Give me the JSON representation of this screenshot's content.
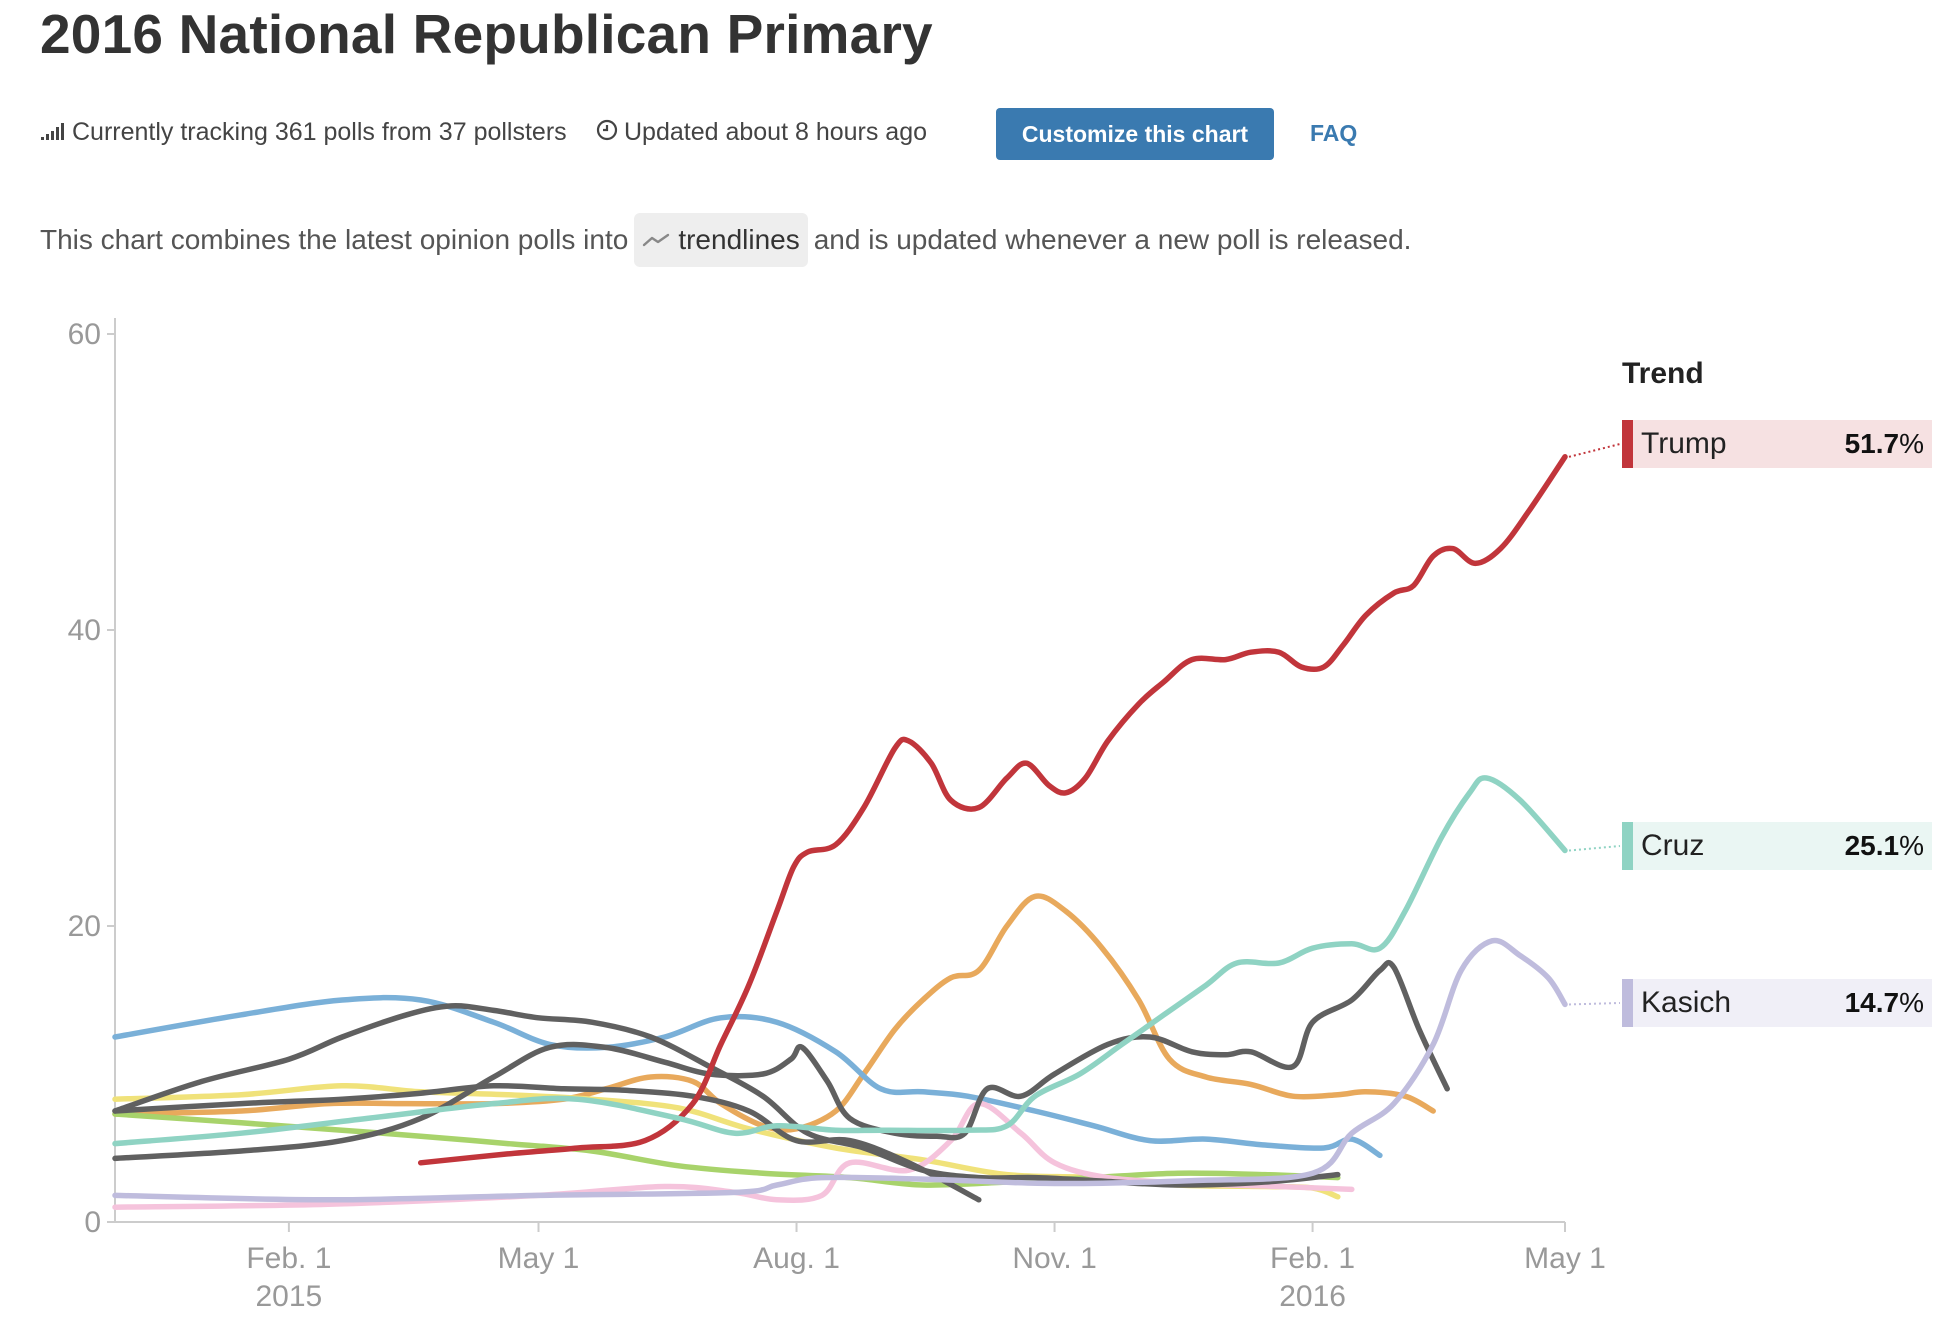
{
  "header": {
    "title": "2016 National Republican Primary",
    "tracking_text": "Currently tracking 361 polls from 37 pollsters",
    "updated_text": "Updated about 8 hours ago",
    "customize_label": "Customize this chart",
    "faq_label": "FAQ"
  },
  "description": {
    "before": "This chart combines the latest opinion polls into",
    "pill": "trendlines",
    "after": "and is updated whenever a new poll is released."
  },
  "legend": {
    "heading": "Trend",
    "entries": [
      {
        "name": "Trump",
        "value": "51.7",
        "unit": "%",
        "color": "#c1353b",
        "bg": "#f6e1e2"
      },
      {
        "name": "Cruz",
        "value": "25.1",
        "unit": "%",
        "color": "#8fd3c3",
        "bg": "#eaf6f3"
      },
      {
        "name": "Kasich",
        "value": "14.7",
        "unit": "%",
        "color": "#bfbcdd",
        "bg": "#f0eff7"
      }
    ]
  },
  "chart_data": {
    "type": "line",
    "y_ticks": [
      "0",
      "20",
      "40",
      "60"
    ],
    "ylim": [
      0,
      60
    ],
    "xlim": [
      "2014-12-01",
      "2016-05-01"
    ],
    "x_ticks": [
      {
        "date": "2015-02-01",
        "label": "Feb. 1",
        "sublabel": "2015"
      },
      {
        "date": "2015-05-01",
        "label": "May 1",
        "sublabel": ""
      },
      {
        "date": "2015-08-01",
        "label": "Aug. 1",
        "sublabel": ""
      },
      {
        "date": "2015-11-01",
        "label": "Nov. 1",
        "sublabel": ""
      },
      {
        "date": "2016-02-01",
        "label": "Feb. 1",
        "sublabel": "2016"
      },
      {
        "date": "2016-05-01",
        "label": "May 1",
        "sublabel": ""
      }
    ],
    "grid": false,
    "legend_position": "right",
    "series": [
      {
        "name": "Trump",
        "color": "#c1353b",
        "points": [
          [
            "2015-03-20",
            4
          ],
          [
            "2015-04-20",
            4.6
          ],
          [
            "2015-05-15",
            5
          ],
          [
            "2015-06-08",
            5.5
          ],
          [
            "2015-06-25",
            8
          ],
          [
            "2015-07-05",
            12
          ],
          [
            "2015-07-15",
            16
          ],
          [
            "2015-07-25",
            21
          ],
          [
            "2015-07-31",
            24
          ],
          [
            "2015-08-05",
            25
          ],
          [
            "2015-08-15",
            25.5
          ],
          [
            "2015-08-25",
            28
          ],
          [
            "2015-09-05",
            32
          ],
          [
            "2015-09-10",
            32.5
          ],
          [
            "2015-09-18",
            31
          ],
          [
            "2015-09-25",
            28.5
          ],
          [
            "2015-10-05",
            28
          ],
          [
            "2015-10-15",
            30
          ],
          [
            "2015-10-22",
            31
          ],
          [
            "2015-10-30",
            29.5
          ],
          [
            "2015-11-05",
            29
          ],
          [
            "2015-11-12",
            30
          ],
          [
            "2015-11-20",
            32.5
          ],
          [
            "2015-12-01",
            35
          ],
          [
            "2015-12-10",
            36.5
          ],
          [
            "2015-12-20",
            38
          ],
          [
            "2016-01-01",
            38
          ],
          [
            "2016-01-10",
            38.5
          ],
          [
            "2016-01-20",
            38.5
          ],
          [
            "2016-01-28",
            37.5
          ],
          [
            "2016-02-05",
            37.5
          ],
          [
            "2016-02-12",
            39
          ],
          [
            "2016-02-20",
            41
          ],
          [
            "2016-03-01",
            42.5
          ],
          [
            "2016-03-08",
            43
          ],
          [
            "2016-03-15",
            45
          ],
          [
            "2016-03-22",
            45.5
          ],
          [
            "2016-03-30",
            44.5
          ],
          [
            "2016-04-08",
            45.5
          ],
          [
            "2016-04-18",
            48
          ],
          [
            "2016-05-01",
            51.7
          ]
        ]
      },
      {
        "name": "Cruz",
        "color": "#8fd3c3",
        "points": [
          [
            "2014-12-01",
            5.3
          ],
          [
            "2015-01-15",
            6
          ],
          [
            "2015-03-01",
            7
          ],
          [
            "2015-04-15",
            8
          ],
          [
            "2015-05-15",
            8.3
          ],
          [
            "2015-06-20",
            7
          ],
          [
            "2015-07-10",
            6
          ],
          [
            "2015-07-25",
            6.5
          ],
          [
            "2015-08-15",
            6.2
          ],
          [
            "2015-09-01",
            6.2
          ],
          [
            "2015-10-01",
            6.2
          ],
          [
            "2015-10-15",
            6.5
          ],
          [
            "2015-10-25",
            8.5
          ],
          [
            "2015-11-10",
            10
          ],
          [
            "2015-11-25",
            12
          ],
          [
            "2015-12-10",
            14
          ],
          [
            "2015-12-25",
            16
          ],
          [
            "2016-01-05",
            17.5
          ],
          [
            "2016-01-20",
            17.5
          ],
          [
            "2016-02-01",
            18.5
          ],
          [
            "2016-02-15",
            18.8
          ],
          [
            "2016-02-25",
            18.5
          ],
          [
            "2016-03-05",
            21
          ],
          [
            "2016-03-18",
            26
          ],
          [
            "2016-03-28",
            29
          ],
          [
            "2016-04-03",
            30
          ],
          [
            "2016-04-15",
            28.5
          ],
          [
            "2016-05-01",
            25.1
          ]
        ]
      },
      {
        "name": "Kasich",
        "color": "#bfbcdd",
        "points": [
          [
            "2014-12-01",
            1.8
          ],
          [
            "2015-02-15",
            1.5
          ],
          [
            "2015-05-01",
            1.8
          ],
          [
            "2015-07-10",
            2
          ],
          [
            "2015-07-25",
            2.5
          ],
          [
            "2015-08-10",
            3
          ],
          [
            "2015-09-15",
            2.9
          ],
          [
            "2015-11-01",
            2.6
          ],
          [
            "2015-12-20",
            2.8
          ],
          [
            "2016-02-01",
            3.3
          ],
          [
            "2016-02-15",
            6
          ],
          [
            "2016-03-01",
            8
          ],
          [
            "2016-03-15",
            12
          ],
          [
            "2016-03-25",
            17
          ],
          [
            "2016-04-05",
            19
          ],
          [
            "2016-04-15",
            18
          ],
          [
            "2016-04-25",
            16.5
          ],
          [
            "2016-05-01",
            14.7
          ]
        ]
      },
      {
        "color": "#e8a95c",
        "points": [
          [
            "2014-12-01",
            7.3
          ],
          [
            "2015-01-15",
            7.5
          ],
          [
            "2015-02-15",
            8
          ],
          [
            "2015-03-15",
            8
          ],
          [
            "2015-04-15",
            8
          ],
          [
            "2015-05-10",
            8.3
          ],
          [
            "2015-05-25",
            9
          ],
          [
            "2015-06-10",
            9.8
          ],
          [
            "2015-06-25",
            9.5
          ],
          [
            "2015-07-05",
            8
          ],
          [
            "2015-07-20",
            6.5
          ],
          [
            "2015-08-01",
            6.3
          ],
          [
            "2015-08-15",
            7.5
          ],
          [
            "2015-08-25",
            10
          ],
          [
            "2015-09-05",
            13
          ],
          [
            "2015-09-15",
            15
          ],
          [
            "2015-09-25",
            16.5
          ],
          [
            "2015-10-05",
            17
          ],
          [
            "2015-10-15",
            20
          ],
          [
            "2015-10-25",
            22
          ],
          [
            "2015-11-05",
            21
          ],
          [
            "2015-11-18",
            18.5
          ],
          [
            "2015-12-01",
            15
          ],
          [
            "2015-12-12",
            11
          ],
          [
            "2015-12-25",
            9.8
          ],
          [
            "2016-01-10",
            9.3
          ],
          [
            "2016-01-25",
            8.5
          ],
          [
            "2016-02-10",
            8.6
          ],
          [
            "2016-02-20",
            8.8
          ],
          [
            "2016-03-05",
            8.5
          ],
          [
            "2016-03-15",
            7.5
          ]
        ]
      },
      {
        "color": "#7ab0d8",
        "points": [
          [
            "2014-12-01",
            12.5
          ],
          [
            "2015-01-15",
            14
          ],
          [
            "2015-02-20",
            15
          ],
          [
            "2015-03-20",
            15
          ],
          [
            "2015-04-15",
            13.5
          ],
          [
            "2015-05-05",
            12
          ],
          [
            "2015-05-25",
            11.8
          ],
          [
            "2015-06-15",
            12.5
          ],
          [
            "2015-07-05",
            13.8
          ],
          [
            "2015-07-25",
            13.5
          ],
          [
            "2015-08-15",
            11.5
          ],
          [
            "2015-08-31",
            9
          ],
          [
            "2015-09-15",
            8.8
          ],
          [
            "2015-10-01",
            8.5
          ],
          [
            "2015-10-25",
            7.5
          ],
          [
            "2015-11-15",
            6.5
          ],
          [
            "2015-12-05",
            5.5
          ],
          [
            "2015-12-25",
            5.6
          ],
          [
            "2016-01-15",
            5.2
          ],
          [
            "2016-02-05",
            5
          ],
          [
            "2016-02-15",
            5.6
          ],
          [
            "2016-02-25",
            4.5
          ]
        ]
      },
      {
        "color": "#f0e27a",
        "points": [
          [
            "2014-12-01",
            8.3
          ],
          [
            "2015-01-15",
            8.6
          ],
          [
            "2015-02-20",
            9.2
          ],
          [
            "2015-03-20",
            8.8
          ],
          [
            "2015-04-20",
            8.6
          ],
          [
            "2015-05-20",
            8.3
          ],
          [
            "2015-06-20",
            7.7
          ],
          [
            "2015-07-15",
            6.3
          ],
          [
            "2015-08-15",
            5
          ],
          [
            "2015-09-15",
            4.2
          ],
          [
            "2015-10-15",
            3.2
          ],
          [
            "2015-11-15",
            3
          ],
          [
            "2015-12-15",
            2.5
          ],
          [
            "2016-01-15",
            2.4
          ],
          [
            "2016-02-01",
            2.3
          ],
          [
            "2016-02-10",
            1.7
          ]
        ]
      },
      {
        "color": "#a8d36b",
        "points": [
          [
            "2014-12-01",
            7.3
          ],
          [
            "2015-01-15",
            6.7
          ],
          [
            "2015-02-20",
            6.2
          ],
          [
            "2015-03-20",
            5.8
          ],
          [
            "2015-04-20",
            5.3
          ],
          [
            "2015-05-20",
            4.8
          ],
          [
            "2015-06-20",
            3.8
          ],
          [
            "2015-07-20",
            3.3
          ],
          [
            "2015-08-20",
            3
          ],
          [
            "2015-09-15",
            2.5
          ],
          [
            "2015-10-15",
            2.7
          ],
          [
            "2015-11-15",
            3
          ],
          [
            "2015-12-15",
            3.3
          ],
          [
            "2016-01-15",
            3.2
          ],
          [
            "2016-02-10",
            3
          ]
        ]
      },
      {
        "color": "#f5c3dc",
        "points": [
          [
            "2014-12-01",
            1
          ],
          [
            "2015-02-15",
            1.2
          ],
          [
            "2015-05-01",
            1.8
          ],
          [
            "2015-06-15",
            2.4
          ],
          [
            "2015-07-10",
            2
          ],
          [
            "2015-07-25",
            1.5
          ],
          [
            "2015-08-10",
            1.8
          ],
          [
            "2015-08-20",
            4
          ],
          [
            "2015-09-10",
            3.5
          ],
          [
            "2015-09-25",
            5.5
          ],
          [
            "2015-10-05",
            8
          ],
          [
            "2015-10-20",
            6
          ],
          [
            "2015-11-01",
            4
          ],
          [
            "2015-11-20",
            3
          ],
          [
            "2015-12-20",
            2.6
          ],
          [
            "2016-01-20",
            2.4
          ],
          [
            "2016-02-15",
            2.2
          ]
        ]
      },
      {
        "color": "#606060",
        "points": [
          [
            "2014-12-01",
            7.5
          ],
          [
            "2015-01-01",
            9.5
          ],
          [
            "2015-02-01",
            11
          ],
          [
            "2015-02-20",
            12.5
          ],
          [
            "2015-03-15",
            14
          ],
          [
            "2015-03-31",
            14.6
          ],
          [
            "2015-04-15",
            14.3
          ],
          [
            "2015-05-01",
            13.8
          ],
          [
            "2015-05-20",
            13.5
          ],
          [
            "2015-06-10",
            12.5
          ],
          [
            "2015-07-01",
            10.5
          ],
          [
            "2015-07-20",
            8.5
          ],
          [
            "2015-08-05",
            6
          ],
          [
            "2015-08-25",
            5
          ],
          [
            "2015-09-15",
            3.5
          ],
          [
            "2015-10-05",
            3
          ],
          [
            "2015-10-25",
            3
          ],
          [
            "2015-11-15",
            2.8
          ],
          [
            "2015-12-15",
            2.5
          ],
          [
            "2016-01-15",
            2.7
          ],
          [
            "2016-02-10",
            3.2
          ]
        ]
      },
      {
        "color": "#606060",
        "points": [
          [
            "2014-12-01",
            7.5
          ],
          [
            "2015-01-15",
            8
          ],
          [
            "2015-02-20",
            8.3
          ],
          [
            "2015-03-20",
            8.7
          ],
          [
            "2015-04-15",
            9.2
          ],
          [
            "2015-05-10",
            9
          ],
          [
            "2015-06-01",
            8.9
          ],
          [
            "2015-06-25",
            8.5
          ],
          [
            "2015-07-15",
            7.5
          ],
          [
            "2015-08-01",
            5.5
          ],
          [
            "2015-08-20",
            5.5
          ],
          [
            "2015-09-10",
            4
          ],
          [
            "2015-10-05",
            1.5
          ]
        ]
      },
      {
        "color": "#606060",
        "points": [
          [
            "2014-12-01",
            4.3
          ],
          [
            "2015-01-15",
            4.8
          ],
          [
            "2015-02-20",
            5.5
          ],
          [
            "2015-03-20",
            7
          ],
          [
            "2015-04-15",
            9.8
          ],
          [
            "2015-05-05",
            11.8
          ],
          [
            "2015-05-25",
            11.8
          ],
          [
            "2015-06-15",
            10.8
          ],
          [
            "2015-07-01",
            10
          ],
          [
            "2015-07-20",
            10
          ],
          [
            "2015-07-30",
            11
          ],
          [
            "2015-08-03",
            11.8
          ],
          [
            "2015-08-12",
            9.5
          ],
          [
            "2015-08-20",
            7
          ],
          [
            "2015-09-05",
            6
          ],
          [
            "2015-09-20",
            5.8
          ],
          [
            "2015-09-30",
            6
          ],
          [
            "2015-10-08",
            9
          ],
          [
            "2015-10-20",
            8.5
          ],
          [
            "2015-11-01",
            10
          ],
          [
            "2015-11-20",
            12
          ],
          [
            "2015-12-05",
            12.5
          ],
          [
            "2015-12-20",
            11.5
          ],
          [
            "2016-01-01",
            11.3
          ],
          [
            "2016-01-10",
            11.5
          ],
          [
            "2016-01-25",
            10.5
          ],
          [
            "2016-02-01",
            13.5
          ],
          [
            "2016-02-15",
            15
          ],
          [
            "2016-02-25",
            17
          ],
          [
            "2016-03-01",
            17.2
          ],
          [
            "2016-03-10",
            13
          ],
          [
            "2016-03-20",
            9
          ]
        ]
      }
    ]
  }
}
